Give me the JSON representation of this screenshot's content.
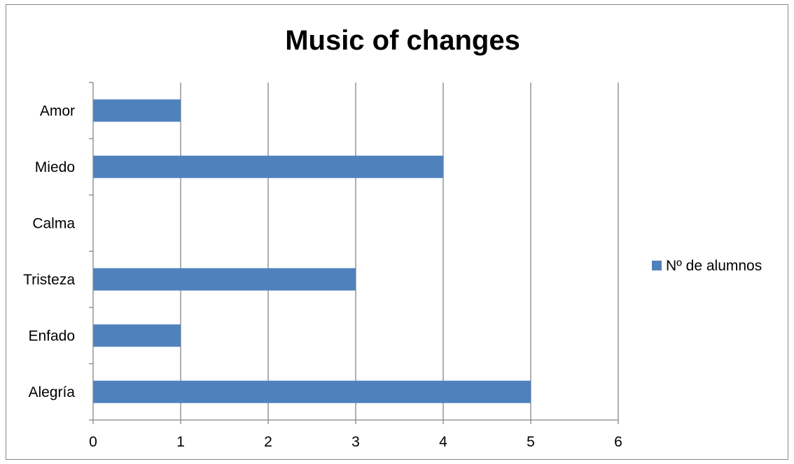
{
  "chart_data": {
    "type": "bar",
    "orientation": "horizontal",
    "title": "Music of changes",
    "categories": [
      "Alegría",
      "Enfado",
      "Tristeza",
      "Calma",
      "Miedo",
      "Amor"
    ],
    "series": [
      {
        "name": "Nº de alumnos",
        "values": [
          5,
          1,
          3,
          0,
          4,
          1
        ],
        "color": "#4F81BD"
      }
    ],
    "xlim": [
      0,
      6
    ],
    "x_ticks": [
      "0",
      "1",
      "2",
      "3",
      "4",
      "5",
      "6"
    ],
    "grid": "vertical",
    "legend_position": "right",
    "colors": {
      "gridline": "#868686",
      "axis": "#868686",
      "border": "#868686"
    }
  }
}
